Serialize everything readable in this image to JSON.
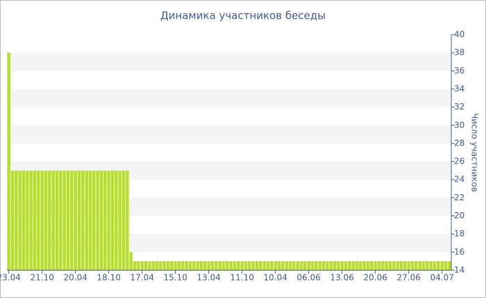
{
  "chart_data": {
    "type": "bar",
    "title": "Динамика участников беседы",
    "y_label": "Число участников",
    "categories": [
      "23.04",
      null,
      null,
      null,
      null,
      null,
      null,
      null,
      null,
      "21.10",
      null,
      null,
      null,
      null,
      null,
      null,
      null,
      null,
      "20.04",
      null,
      null,
      null,
      null,
      null,
      null,
      null,
      null,
      "18.10",
      null,
      null,
      null,
      null,
      null,
      null,
      null,
      null,
      "17.04",
      null,
      null,
      null,
      null,
      null,
      null,
      null,
      null,
      "15.10",
      null,
      null,
      null,
      null,
      null,
      null,
      null,
      null,
      "13.04",
      null,
      null,
      null,
      null,
      null,
      null,
      null,
      null,
      "11.10",
      null,
      null,
      null,
      null,
      null,
      null,
      null,
      null,
      "10.04",
      null,
      null,
      null,
      null,
      null,
      null,
      null,
      null,
      "06.06",
      null,
      null,
      null,
      null,
      null,
      null,
      null,
      null,
      "13.06",
      null,
      null,
      null,
      null,
      null,
      null,
      null,
      null,
      "20.06",
      null,
      null,
      null,
      null,
      null,
      null,
      null,
      null,
      "27.06",
      null,
      null,
      null,
      null,
      null,
      null,
      null,
      null,
      "04.07",
      null,
      null
    ],
    "values": [
      38,
      25,
      25,
      25,
      25,
      25,
      25,
      25,
      25,
      25,
      25,
      25,
      25,
      25,
      25,
      25,
      25,
      25,
      25,
      25,
      25,
      25,
      25,
      25,
      25,
      25,
      25,
      25,
      25,
      25,
      25,
      25,
      25,
      16,
      15,
      15,
      15,
      15,
      15,
      15,
      15,
      15,
      15,
      15,
      15,
      15,
      15,
      15,
      15,
      15,
      15,
      15,
      15,
      15,
      15,
      15,
      15,
      15,
      15,
      15,
      15,
      15,
      15,
      15,
      15,
      15,
      15,
      15,
      15,
      15,
      15,
      15,
      15,
      15,
      15,
      15,
      15,
      15,
      15,
      15,
      15,
      15,
      15,
      15,
      15,
      15,
      15,
      15,
      15,
      15,
      15,
      15,
      15,
      15,
      15,
      15,
      15,
      15,
      15,
      15,
      15,
      15,
      15,
      15,
      15,
      15,
      15,
      15,
      15,
      15,
      15,
      15,
      15,
      15,
      15,
      15,
      15,
      15,
      15,
      15
    ],
    "color": "#b8de2c",
    "ylim": [
      14,
      40
    ],
    "yticks": [
      14,
      16,
      18,
      20,
      22,
      24,
      26,
      28,
      30,
      32,
      34,
      36,
      38,
      40
    ],
    "grid": true
  }
}
